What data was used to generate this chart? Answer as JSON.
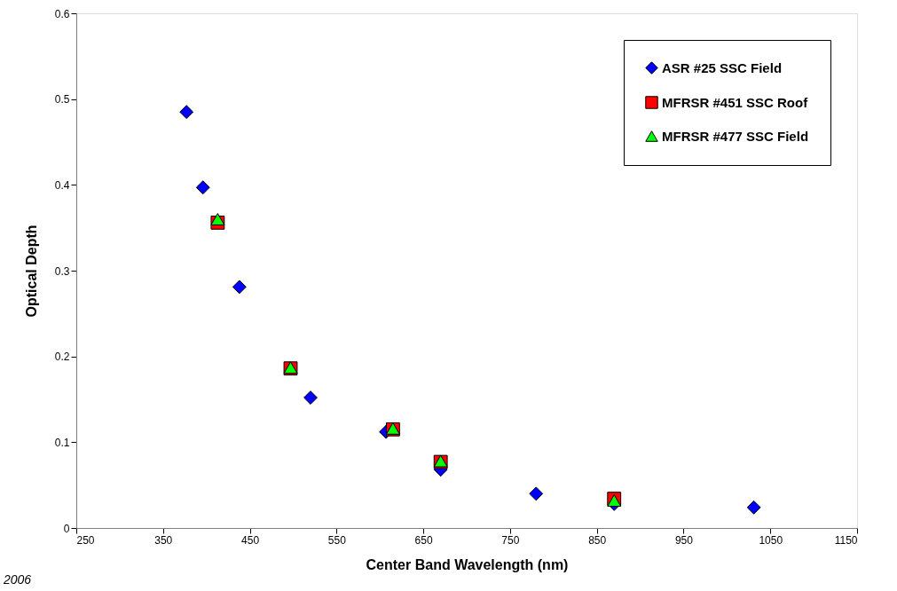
{
  "chart_data": {
    "type": "scatter",
    "xlabel": "Center Band Wavelength (nm)",
    "ylabel": "Optical Depth",
    "xlim": [
      250,
      1150
    ],
    "xticks": [
      250,
      350,
      450,
      550,
      650,
      750,
      850,
      950,
      1050,
      1150
    ],
    "ylim": [
      0,
      0.6
    ],
    "yticks": [
      0,
      0.1,
      0.2,
      0.3,
      0.4,
      0.5,
      0.6
    ],
    "grid": false,
    "legend": "top right",
    "annotations": [
      "2006"
    ],
    "series": [
      {
        "name": "ASR #25 SSC Field",
        "color": "#0000ff",
        "marker": "diamond",
        "x": [
          377,
          396,
          438,
          520,
          607,
          670,
          780,
          870,
          1031
        ],
        "values": [
          0.485,
          0.397,
          0.281,
          0.152,
          0.112,
          0.068,
          0.04,
          0.028,
          0.024
        ]
      },
      {
        "name": "MFRSR #451 SSC Roof",
        "color": "#ff0000",
        "marker": "square",
        "x": [
          413,
          497,
          615,
          670,
          870
        ],
        "values": [
          0.356,
          0.186,
          0.115,
          0.077,
          0.034
        ]
      },
      {
        "name": "MFRSR #477 SSC Field",
        "color": "#00ff00",
        "marker": "triangle",
        "x": [
          413,
          497,
          615,
          670,
          870
        ],
        "values": [
          0.36,
          0.187,
          0.116,
          0.078,
          0.032
        ]
      }
    ]
  }
}
